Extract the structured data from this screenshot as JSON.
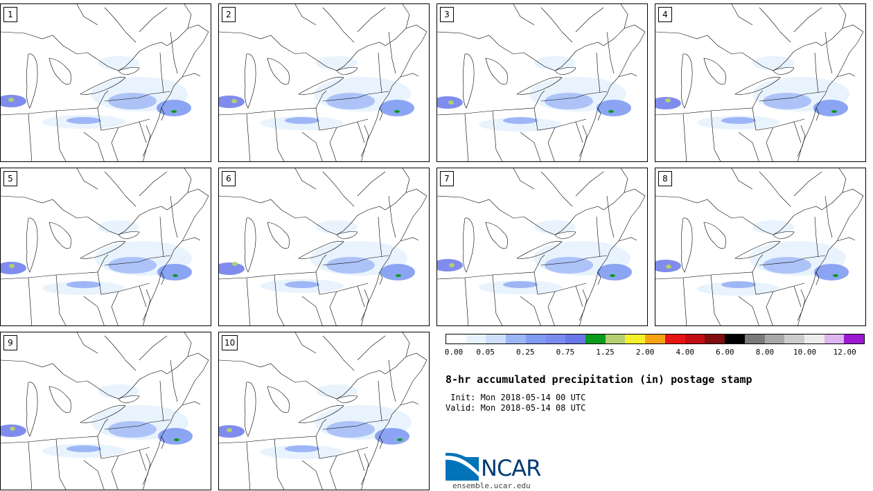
{
  "panels": [
    {
      "label": "1"
    },
    {
      "label": "2"
    },
    {
      "label": "3"
    },
    {
      "label": "4"
    },
    {
      "label": "5"
    },
    {
      "label": "6"
    },
    {
      "label": "7"
    },
    {
      "label": "8"
    },
    {
      "label": "9"
    },
    {
      "label": "10"
    }
  ],
  "colorbar": {
    "colors": [
      "#ffffff",
      "#e8f3fd",
      "#cfe0fb",
      "#9db7f6",
      "#7f9bf2",
      "#7b8cf0",
      "#6a78ea",
      "#0a9a1e",
      "#b3cf72",
      "#f4f12c",
      "#f7a313",
      "#e71513",
      "#c00e12",
      "#7e0d0f",
      "#000000",
      "#7a7a7a",
      "#a8a8a8",
      "#cccccc",
      "#ececec",
      "#ddb6f0",
      "#9b19d2"
    ],
    "tick_labels": [
      "0.00",
      "0.05",
      "0.25",
      "0.75",
      "1.25",
      "2.00",
      "4.00",
      "6.00",
      "8.00",
      "10.00",
      "12.00"
    ]
  },
  "title": "8-hr accumulated precipitation (in) postage stamp",
  "init": " Init: Mon 2018-05-14 00 UTC",
  "valid": "Valid: Mon 2018-05-14 08 UTC",
  "logo": {
    "text": "NCAR",
    "colors": [
      "#0073b9",
      "#003b73"
    ]
  },
  "site": "ensemble.ucar.edu"
}
